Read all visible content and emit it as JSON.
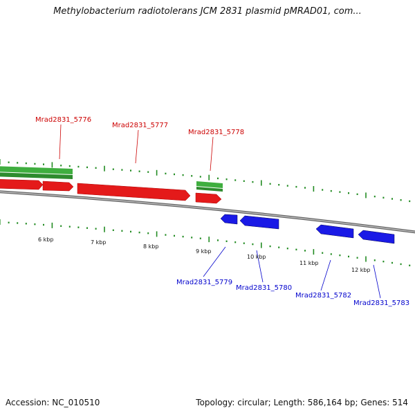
{
  "title": "Methylobacterium radiotolerans JCM 2831 plasmid pMRAD01, com...",
  "accession": "Accession: NC_010510",
  "summary": "Topology: circular; Length: 586,164 bp; Genes: 514",
  "colors": {
    "forward_cds": "#ee1c1c",
    "reverse_cds": "#1a1aee",
    "rna_or_misc": "#33aa33",
    "forward_label": "#cc0000",
    "reverse_label": "#0000cc",
    "backbone": "#888888",
    "tick": "#228b22"
  },
  "genes_forward": [
    {
      "label": "Mrad2831_5776",
      "locus_tag": "Mrad2831_5776"
    },
    {
      "label": "Mrad2831_5777",
      "locus_tag": "Mrad2831_5777"
    },
    {
      "label": "Mrad2831_5778",
      "locus_tag": "Mrad2831_5778"
    }
  ],
  "genes_reverse": [
    {
      "label": "Mrad2831_5779",
      "locus_tag": "Mrad2831_5779"
    },
    {
      "label": "Mrad2831_5780",
      "locus_tag": "Mrad2831_5780"
    },
    {
      "label": "Mrad2831_5782",
      "locus_tag": "Mrad2831_5782"
    },
    {
      "label": "Mrad2831_5783",
      "locus_tag": "Mrad2831_5783"
    }
  ],
  "kbp_labels": [
    "6 kbp",
    "7 kbp",
    "8 kbp",
    "9 kbp",
    "10 kbp",
    "11 kbp",
    "12 kbp"
  ]
}
